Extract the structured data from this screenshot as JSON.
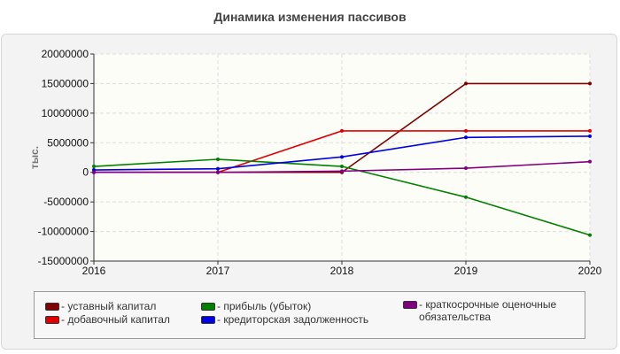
{
  "chart_data": {
    "type": "line",
    "title": "Динамика изменения пассивов",
    "ylabel": "тыс.",
    "xlabel": "",
    "x": [
      "2016",
      "2017",
      "2018",
      "2019",
      "2020"
    ],
    "ylim": [
      -15000000,
      20000000
    ],
    "yticks": [
      "20000000",
      "15000000",
      "10000000",
      "5000000",
      "0",
      "-5000000",
      "-10000000",
      "-15000000"
    ],
    "ytick_values": [
      20000000,
      15000000,
      10000000,
      5000000,
      0,
      -5000000,
      -10000000,
      -15000000
    ],
    "grid": true,
    "legend_position": "bottom",
    "series": [
      {
        "name": "- уставный капитал",
        "color": "#800000",
        "values": [
          0,
          0,
          0,
          15000000,
          15000000
        ]
      },
      {
        "name": "- добавочный капитал",
        "color": "#e00000",
        "values": [
          0,
          0,
          7000000,
          7000000,
          7000000
        ]
      },
      {
        "name": "- прибыль (убыток)",
        "color": "#008000",
        "values": [
          1000000,
          2200000,
          1000000,
          -4200000,
          -10600000
        ]
      },
      {
        "name": "- кредиторская задолженность",
        "color": "#0000e0",
        "values": [
          400000,
          600000,
          2600000,
          5900000,
          6100000
        ]
      },
      {
        "name": "- краткосрочные оценочные обязательства",
        "color": "#800080",
        "values": [
          0,
          0,
          200000,
          700000,
          1800000
        ]
      }
    ]
  }
}
